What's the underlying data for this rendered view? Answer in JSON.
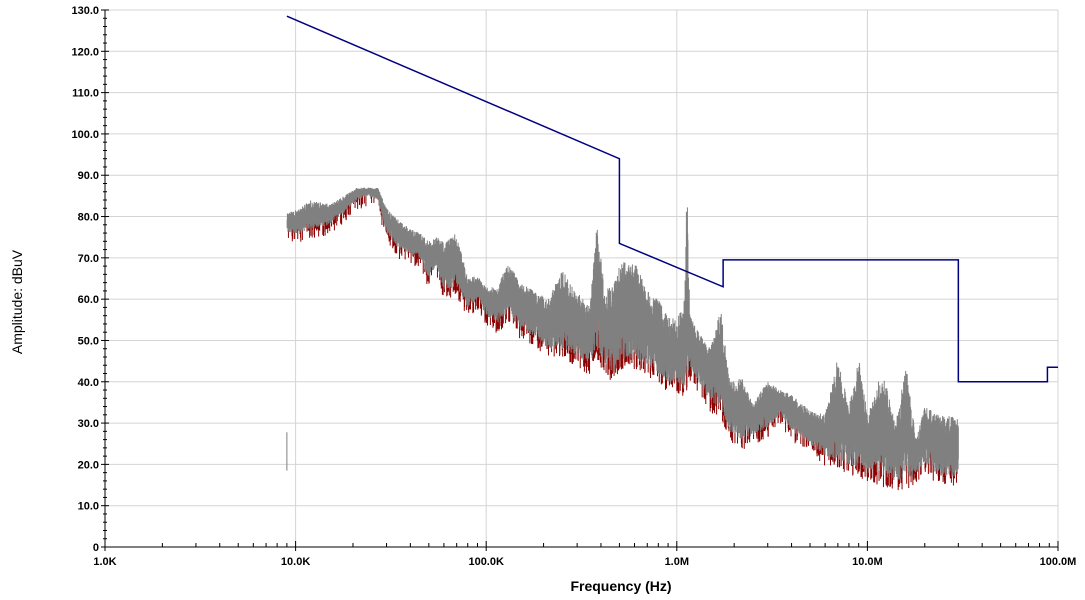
{
  "chart_data": {
    "type": "line",
    "xlabel": "Frequency (Hz)",
    "ylabel": "Amplitude: dBuV",
    "x_scale": "log",
    "xlim": [
      1000,
      100000000
    ],
    "ylim": [
      0,
      130
    ],
    "grid": true,
    "x_ticks": [
      {
        "value": 1000,
        "label": "1.0K"
      },
      {
        "value": 10000,
        "label": "10.0K"
      },
      {
        "value": 100000,
        "label": "100.0K"
      },
      {
        "value": 1000000,
        "label": "1.0M"
      },
      {
        "value": 10000000,
        "label": "10.0M"
      },
      {
        "value": 100000000,
        "label": "100.0M"
      }
    ],
    "y_ticks": [
      {
        "value": 0,
        "label": "0"
      },
      {
        "value": 10,
        "label": "10.0"
      },
      {
        "value": 20,
        "label": "20.0"
      },
      {
        "value": 30,
        "label": "30.0"
      },
      {
        "value": 40,
        "label": "40.0"
      },
      {
        "value": 50,
        "label": "50.0"
      },
      {
        "value": 60,
        "label": "60.0"
      },
      {
        "value": 70,
        "label": "70.0"
      },
      {
        "value": 80,
        "label": "80.0"
      },
      {
        "value": 90,
        "label": "90.0"
      },
      {
        "value": 100,
        "label": "100.0"
      },
      {
        "value": 110,
        "label": "110.0"
      },
      {
        "value": 120,
        "label": "120.0"
      },
      {
        "value": 130,
        "label": "130.0"
      }
    ],
    "series": [
      {
        "color": "#000080",
        "role": "limit",
        "points": [
          [
            9000,
            128.5
          ],
          [
            500000,
            94
          ],
          [
            500000,
            73.5
          ],
          [
            1750000,
            63
          ],
          [
            1750000,
            69.5
          ],
          [
            30000000,
            69.5
          ],
          [
            30000000,
            40
          ],
          [
            88000000,
            40
          ],
          [
            88000000,
            43.5
          ],
          [
            100000000,
            43.5
          ]
        ]
      },
      {
        "color": "#808080",
        "peak_color": "#8b0000",
        "role": "measurement",
        "envelope": [
          [
            9000,
            76,
            81
          ],
          [
            10500,
            76,
            82
          ],
          [
            12000,
            77,
            84
          ],
          [
            15000,
            78,
            83
          ],
          [
            18000,
            81,
            85
          ],
          [
            21000,
            84,
            87
          ],
          [
            24000,
            85,
            87
          ],
          [
            27000,
            84,
            87
          ],
          [
            30000,
            76,
            82
          ],
          [
            35000,
            72,
            79
          ],
          [
            40000,
            71,
            77
          ],
          [
            45000,
            70,
            76
          ],
          [
            50000,
            65,
            74
          ],
          [
            55000,
            68,
            75
          ],
          [
            60000,
            62,
            74
          ],
          [
            70000,
            63,
            76
          ],
          [
            80000,
            58,
            65
          ],
          [
            90000,
            60,
            66
          ],
          [
            100000,
            56,
            63
          ],
          [
            115000,
            54,
            63
          ],
          [
            130000,
            57,
            69
          ],
          [
            150000,
            53,
            64
          ],
          [
            180000,
            51,
            62
          ],
          [
            210000,
            48,
            60
          ],
          [
            250000,
            48,
            67
          ],
          [
            300000,
            46,
            62
          ],
          [
            350000,
            44,
            58
          ],
          [
            380000,
            48,
            78
          ],
          [
            420000,
            44,
            62
          ],
          [
            470000,
            42,
            64
          ],
          [
            500000,
            45,
            68
          ],
          [
            560000,
            46,
            70
          ],
          [
            620000,
            45,
            68
          ],
          [
            700000,
            44,
            62
          ],
          [
            800000,
            42,
            60
          ],
          [
            900000,
            40,
            56
          ],
          [
            1000000,
            40,
            55
          ],
          [
            1100000,
            38,
            60
          ],
          [
            1130000,
            40,
            90
          ],
          [
            1170000,
            42,
            56
          ],
          [
            1300000,
            40,
            52
          ],
          [
            1500000,
            35,
            48
          ],
          [
            1700000,
            34,
            58
          ],
          [
            1900000,
            28,
            40
          ],
          [
            2200000,
            26,
            41
          ],
          [
            2500000,
            27,
            35
          ],
          [
            3000000,
            29,
            40
          ],
          [
            3500000,
            32,
            38
          ],
          [
            4000000,
            28,
            37
          ],
          [
            5000000,
            25,
            33
          ],
          [
            6000000,
            22,
            32
          ],
          [
            7000000,
            21,
            46
          ],
          [
            8000000,
            20,
            34
          ],
          [
            9000000,
            19,
            46
          ],
          [
            10000000,
            18,
            32
          ],
          [
            12000000,
            17,
            43
          ],
          [
            14000000,
            16,
            30
          ],
          [
            16000000,
            16,
            44
          ],
          [
            18000000,
            18,
            26
          ],
          [
            20000000,
            20,
            34
          ],
          [
            23000000,
            18,
            33
          ],
          [
            26000000,
            17,
            32
          ],
          [
            30000000,
            17,
            31
          ]
        ]
      }
    ]
  }
}
